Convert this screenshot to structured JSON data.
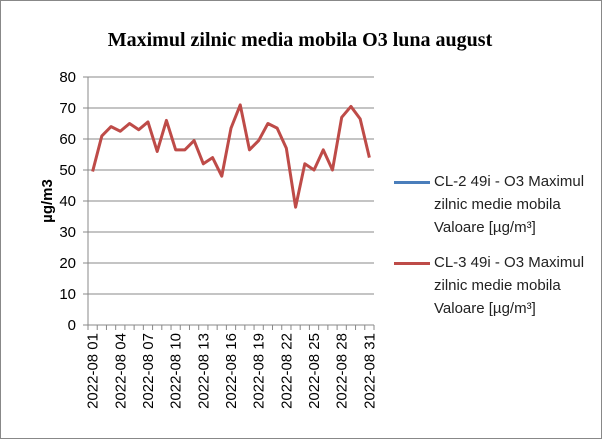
{
  "chart_data": {
    "type": "line",
    "title": "Maximul zilnic media mobila O3 luna august",
    "y_label": "µg/m3",
    "categories": [
      "2022-08 01",
      null,
      null,
      "2022-08 04",
      null,
      null,
      "2022-08 07",
      null,
      null,
      "2022-08 10",
      null,
      null,
      "2022-08 13",
      null,
      null,
      "2022-08 16",
      null,
      null,
      "2022-08 19",
      null,
      null,
      "2022-08 22",
      null,
      null,
      "2022-08 25",
      null,
      null,
      "2022-08 28",
      null,
      null,
      "2022-08 31"
    ],
    "series": [
      {
        "name": "CL-2 49i - O3 Maximul zilnic medie mobila Valoare [µg/m³]",
        "color": "#4a7ebb",
        "values": [
          null,
          null,
          null,
          null,
          null,
          null,
          null,
          null,
          null,
          null,
          null,
          null,
          null,
          null,
          null,
          null,
          null,
          null,
          null,
          null,
          null,
          null,
          null,
          null,
          null,
          null,
          null,
          null,
          null,
          null,
          null
        ]
      },
      {
        "name": "CL-3 49i - O3 Maximul zilnic medie mobila Valoare [µg/m³]",
        "color": "#be4b48",
        "values": [
          49.5,
          61,
          64,
          62.5,
          65,
          63,
          65.5,
          56,
          66,
          56.5,
          56.5,
          59.5,
          52,
          54,
          48,
          63.5,
          71,
          56.5,
          59.5,
          65,
          63.5,
          57,
          38,
          52,
          50,
          56.5,
          50,
          67,
          70.5,
          66.5,
          54
        ]
      }
    ],
    "ylim": [
      0,
      80
    ],
    "yticks": [
      0,
      10,
      20,
      30,
      40,
      50,
      60,
      70,
      80
    ],
    "grid": true,
    "legend": "right"
  }
}
